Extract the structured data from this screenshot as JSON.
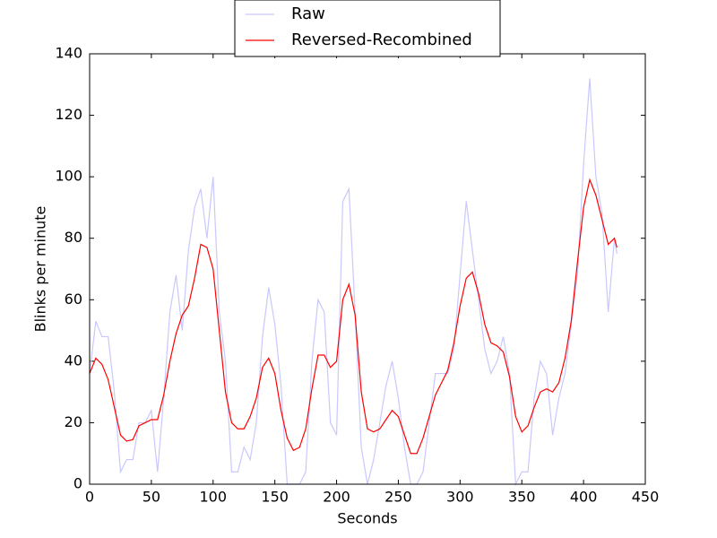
{
  "chart_data": {
    "type": "line",
    "xlabel": "Seconds",
    "ylabel": "Blinks per minute",
    "x": [
      0,
      5,
      10,
      15,
      20,
      25,
      30,
      35,
      40,
      45,
      50,
      55,
      60,
      65,
      70,
      75,
      80,
      85,
      90,
      95,
      100,
      105,
      110,
      115,
      120,
      125,
      130,
      135,
      140,
      145,
      150,
      155,
      160,
      165,
      170,
      175,
      180,
      185,
      190,
      195,
      200,
      205,
      210,
      215,
      220,
      225,
      230,
      235,
      240,
      245,
      250,
      255,
      260,
      265,
      270,
      275,
      280,
      285,
      290,
      295,
      300,
      305,
      310,
      315,
      320,
      325,
      330,
      335,
      340,
      345,
      350,
      355,
      360,
      365,
      370,
      375,
      380,
      385,
      390,
      395,
      400,
      405,
      410,
      415,
      420,
      425,
      427
    ],
    "series": [
      {
        "name": "Raw",
        "color": "#c8c8ff",
        "values": [
          36,
          53,
          48,
          48,
          30,
          4,
          8,
          8,
          20,
          20,
          24,
          4,
          28,
          56,
          68,
          50,
          76,
          90,
          96,
          80,
          100,
          56,
          40,
          4,
          4,
          12,
          8,
          20,
          48,
          64,
          52,
          32,
          0,
          0,
          0,
          4,
          40,
          60,
          56,
          20,
          16,
          92,
          96,
          56,
          12,
          0,
          8,
          20,
          32,
          40,
          28,
          12,
          0,
          0,
          4,
          20,
          36,
          36,
          36,
          44,
          68,
          92,
          76,
          60,
          44,
          36,
          40,
          48,
          36,
          0,
          4,
          4,
          28,
          40,
          36,
          16,
          28,
          36,
          52,
          68,
          104,
          132,
          100,
          88,
          56,
          80,
          75
        ]
      },
      {
        "name": "Reversed-Recombined",
        "color": "#ff0000",
        "values": [
          36,
          41,
          39,
          34,
          25,
          16,
          14,
          14.5,
          19,
          20,
          21,
          21,
          29,
          40,
          49,
          55,
          58,
          67,
          78,
          77,
          70,
          50,
          30,
          20,
          18,
          18,
          22,
          28,
          38,
          41,
          36,
          24,
          15,
          11,
          12,
          18,
          31,
          42,
          42,
          38,
          40,
          60,
          65,
          55,
          30,
          18,
          17,
          18,
          21,
          24,
          22,
          16,
          10,
          10,
          15,
          22,
          29,
          33,
          37,
          46,
          58,
          67,
          69,
          62,
          52,
          46,
          45,
          43,
          35,
          22,
          17,
          19,
          25,
          30,
          31,
          30,
          33,
          41,
          53,
          72,
          90,
          99,
          94,
          86,
          78,
          80,
          77
        ]
      }
    ],
    "xlim": [
      0,
      450
    ],
    "xticks": [
      0,
      50,
      100,
      150,
      200,
      250,
      300,
      350,
      400,
      450
    ],
    "ylim": [
      0,
      140
    ],
    "yticks": [
      0,
      20,
      40,
      60,
      80,
      100,
      120,
      140
    ],
    "grid": false,
    "legend": "upper center"
  }
}
